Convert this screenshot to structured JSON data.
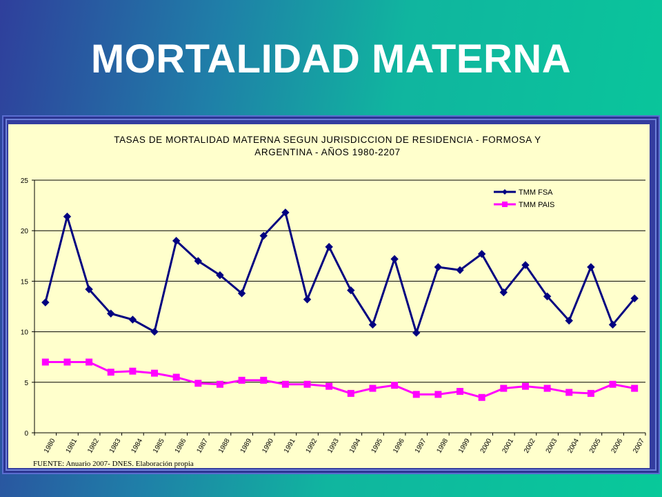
{
  "slide": {
    "title": "MORTALIDAD MATERNA",
    "source": "FUENTE: Anuario 2007- DNES. Elaboración propia"
  },
  "chart_data": {
    "type": "line",
    "title_line1": "TASAS DE MORTALIDAD MATERNA SEGUN JURISDICCION DE RESIDENCIA - FORMOSA Y",
    "title_line2": "ARGENTINA - AÑOS 1980-2207",
    "xlabel": "",
    "ylabel": "",
    "ylim": [
      0,
      25
    ],
    "yticks": [
      "0",
      "5",
      "10",
      "15",
      "20",
      "25"
    ],
    "grid": true,
    "legend_position": "top-right",
    "x": [
      "1980",
      "1981",
      "1982",
      "1983",
      "1984",
      "1985",
      "1986",
      "1987",
      "1988",
      "1989",
      "1990",
      "1991",
      "1992",
      "1993",
      "1994",
      "1995",
      "1996",
      "1997",
      "1998",
      "1999",
      "2000",
      "2001",
      "2002",
      "2003",
      "2004",
      "2005",
      "2006",
      "2007"
    ],
    "series": [
      {
        "name": "TMM FSA",
        "color": "#000080",
        "marker": "diamond",
        "values": [
          12.9,
          21.4,
          14.2,
          11.8,
          11.2,
          10.0,
          19.0,
          17.0,
          15.6,
          13.8,
          19.5,
          21.8,
          13.2,
          18.4,
          14.1,
          10.7,
          17.2,
          9.9,
          16.4,
          16.1,
          17.7,
          13.9,
          16.6,
          13.5,
          11.1,
          16.4,
          10.7,
          13.3
        ]
      },
      {
        "name": "TMM PAIS",
        "color": "#ff00ff",
        "marker": "square",
        "values": [
          7.0,
          7.0,
          7.0,
          6.0,
          6.1,
          5.9,
          5.5,
          4.9,
          4.8,
          5.2,
          5.2,
          4.8,
          4.8,
          4.6,
          3.9,
          4.4,
          4.7,
          3.8,
          3.8,
          4.1,
          3.5,
          4.4,
          4.6,
          4.4,
          4.0,
          3.9,
          4.8,
          4.4
        ]
      }
    ]
  }
}
